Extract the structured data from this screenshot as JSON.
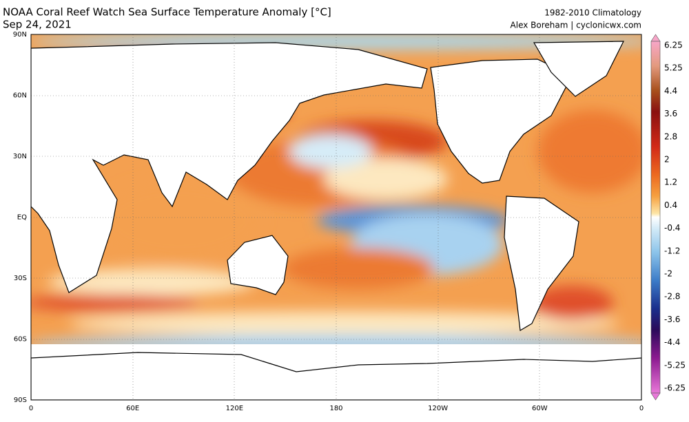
{
  "header": {
    "title": "NOAA Coral Reef Watch Sea Surface Temperature Anomaly [°C]",
    "date": "Sep 24, 2021",
    "climatology": "1982-2010 Climatology",
    "credit": "Alex Boreham | cyclonicwx.com"
  },
  "axes": {
    "lat_labels": [
      "90N",
      "60N",
      "30N",
      "EQ",
      "30S",
      "60S",
      "90S"
    ],
    "lon_labels": [
      "0",
      "60E",
      "120E",
      "180",
      "120W",
      "60W",
      "0"
    ]
  },
  "colorbar": {
    "labels": [
      "6.25",
      "5.25",
      "4.4",
      "3.6",
      "2.8",
      "2",
      "1.2",
      "0.4",
      "-0.4",
      "-1.2",
      "-2",
      "-2.8",
      "-3.6",
      "-4.4",
      "-5.25",
      "-6.25"
    ]
  }
}
